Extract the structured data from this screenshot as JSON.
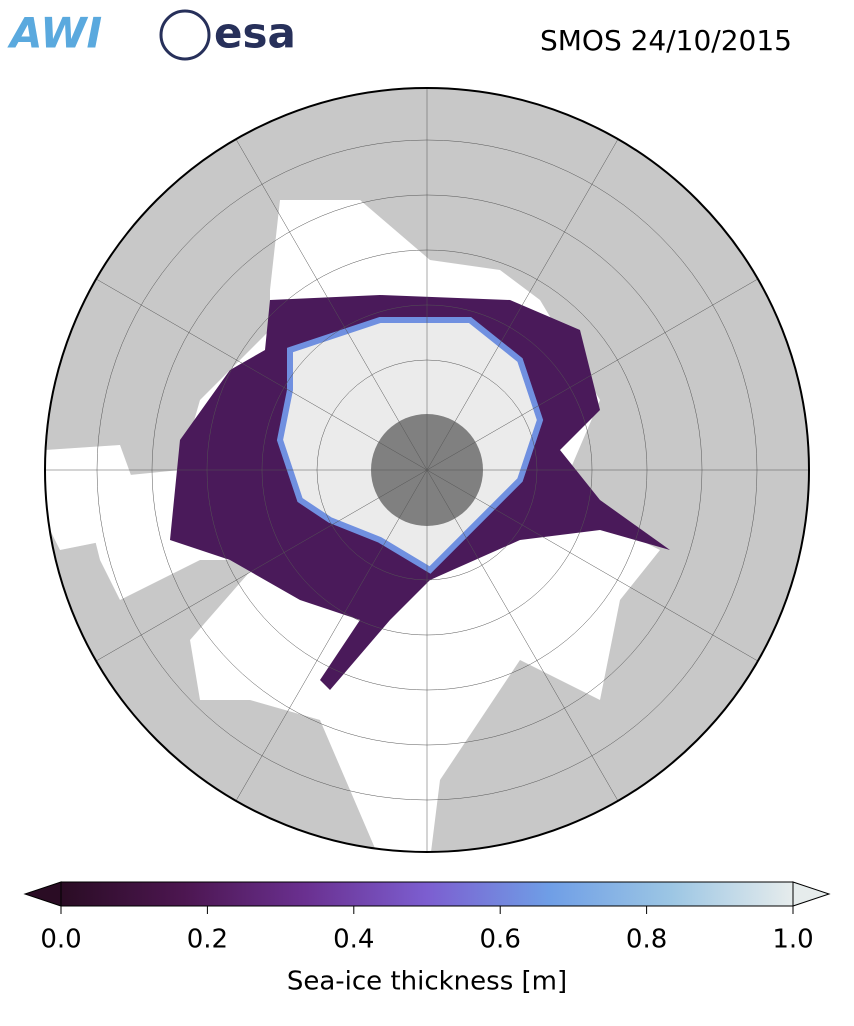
{
  "header": {
    "logos": [
      "AWI",
      "esa"
    ],
    "title": "SMOS 24/10/2015"
  },
  "colorbar": {
    "label": "Sea-ice thickness [m]",
    "lim": [
      0,
      1
    ],
    "ticks": [
      {
        "value": 0,
        "label": "0.0"
      },
      {
        "value": 0.2,
        "label": "0.2"
      },
      {
        "value": 0.4,
        "label": "0.4"
      },
      {
        "value": 0.6,
        "label": "0.6"
      },
      {
        "value": 0.8,
        "label": "0.8"
      },
      {
        "value": 1,
        "label": "1.0"
      }
    ],
    "colors": [
      "#2a0c24",
      "#4c1650",
      "#6a3090",
      "#7c5ed0",
      "#6f9ee6",
      "#9cc6e4",
      "#e6ecec"
    ]
  }
}
